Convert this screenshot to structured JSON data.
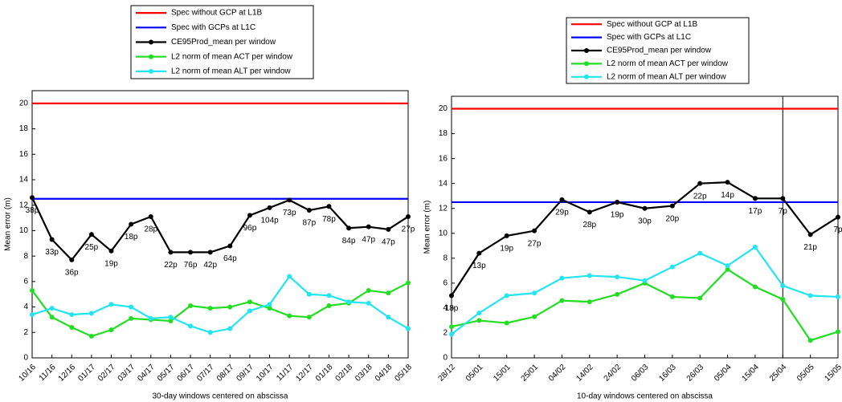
{
  "chart_data": [
    {
      "type": "line",
      "xlabel": "30-day windows centered on abscissa",
      "ylabel": "Mean error (m)",
      "categories": [
        "10/16",
        "11/16",
        "12/16",
        "01/17",
        "02/17",
        "03/17",
        "04/17",
        "05/17",
        "06/17",
        "07/17",
        "08/17",
        "09/17",
        "10/17",
        "11/17",
        "12/17",
        "01/18",
        "02/18",
        "03/18",
        "04/18",
        "05/18"
      ],
      "ylim": [
        0,
        21
      ],
      "yticks": [
        0,
        2,
        4,
        6,
        8,
        10,
        12,
        14,
        16,
        18,
        20
      ],
      "series": [
        {
          "name": "Spec without GCP at L1B",
          "color": "#ff0000",
          "markers": false,
          "values": [
            20,
            20,
            20,
            20,
            20,
            20,
            20,
            20,
            20,
            20,
            20,
            20,
            20,
            20,
            20,
            20,
            20,
            20,
            20,
            20
          ]
        },
        {
          "name": "Spec with GCPs at L1C",
          "color": "#0000ff",
          "markers": false,
          "values": [
            12.5,
            12.5,
            12.5,
            12.5,
            12.5,
            12.5,
            12.5,
            12.5,
            12.5,
            12.5,
            12.5,
            12.5,
            12.5,
            12.5,
            12.5,
            12.5,
            12.5,
            12.5,
            12.5,
            12.5
          ]
        },
        {
          "name": "CE95Prod_mean per window",
          "color": "#000000",
          "markers": true,
          "values": [
            12.6,
            9.3,
            7.7,
            9.7,
            8.4,
            10.5,
            11.1,
            8.3,
            8.3,
            8.3,
            8.8,
            11.2,
            11.8,
            12.4,
            11.6,
            11.9,
            10.2,
            10.3,
            10.1,
            11.1
          ],
          "point_labels": [
            "38p",
            "33p",
            "36p",
            "25p",
            "19p",
            "18p",
            "28p",
            "22p",
            "76p",
            "42p",
            "64p",
            "96p",
            "104p",
            "73p",
            "87p",
            "78p",
            "84p",
            "47p",
            "47p",
            "27p"
          ]
        },
        {
          "name": "L2 norm of mean ACT per window",
          "color": "#22dd22",
          "markers": true,
          "values": [
            5.3,
            3.2,
            2.4,
            1.7,
            2.2,
            3.1,
            3.0,
            2.9,
            4.1,
            3.9,
            4.0,
            4.4,
            3.9,
            3.3,
            3.2,
            4.1,
            4.3,
            5.3,
            5.1,
            5.9
          ]
        },
        {
          "name": "L2 norm of mean ALT per window",
          "color": "#22e5f0",
          "markers": true,
          "values": [
            3.4,
            3.9,
            3.4,
            3.5,
            4.2,
            4.0,
            3.1,
            3.2,
            2.5,
            2.0,
            2.3,
            3.7,
            4.2,
            6.4,
            5.0,
            4.9,
            4.4,
            4.3,
            3.2,
            2.3
          ]
        }
      ]
    },
    {
      "type": "line",
      "xlabel": "10-day windows centered on abscissa",
      "ylabel": "Mean error (m)",
      "categories": [
        "28/12",
        "05/01",
        "15/01",
        "25/01",
        "04/02",
        "14/02",
        "24/02",
        "06/03",
        "16/03",
        "26/03",
        "05/04",
        "15/04",
        "25/04",
        "05/05",
        "15/05"
      ],
      "ylim": [
        0,
        21
      ],
      "yticks": [
        0,
        2,
        4,
        6,
        8,
        10,
        12,
        14,
        16,
        18,
        20
      ],
      "vline": 12,
      "series": [
        {
          "name": "Spec without GCP at L1B",
          "color": "#ff0000",
          "markers": false,
          "values": [
            20,
            20,
            20,
            20,
            20,
            20,
            20,
            20,
            20,
            20,
            20,
            20,
            20,
            20,
            20
          ]
        },
        {
          "name": "Spec with GCPs at L1C",
          "color": "#0000ff",
          "markers": false,
          "values": [
            12.5,
            12.5,
            12.5,
            12.5,
            12.5,
            12.5,
            12.5,
            12.5,
            12.5,
            12.5,
            12.5,
            12.5,
            12.5,
            12.5,
            12.5
          ]
        },
        {
          "name": "CE95Prod_mean per window",
          "color": "#000000",
          "markers": true,
          "values": [
            5.0,
            8.4,
            9.8,
            10.2,
            12.7,
            11.7,
            12.5,
            12.0,
            12.2,
            14.0,
            14.1,
            12.8,
            12.8,
            9.9,
            11.3
          ],
          "point_labels": [
            "18p",
            "13p",
            "19p",
            "27p",
            "29p",
            "28p",
            "19p",
            "30p",
            "20p",
            "22p",
            "14p",
            "17p",
            "7p",
            "21p",
            "7p"
          ]
        },
        {
          "name": "L2 norm of mean ACT per window",
          "color": "#22dd22",
          "markers": true,
          "values": [
            2.5,
            3.0,
            2.8,
            3.3,
            4.6,
            4.5,
            5.1,
            6.0,
            4.9,
            4.8,
            7.1,
            5.7,
            4.7,
            1.4,
            2.1
          ]
        },
        {
          "name": "L2 norm of mean ALT per window",
          "color": "#22e5f0",
          "markers": true,
          "values": [
            1.9,
            3.6,
            5.0,
            5.2,
            6.4,
            6.6,
            6.5,
            6.2,
            7.3,
            8.4,
            7.4,
            8.9,
            5.8,
            5.0,
            4.9
          ]
        }
      ]
    }
  ]
}
